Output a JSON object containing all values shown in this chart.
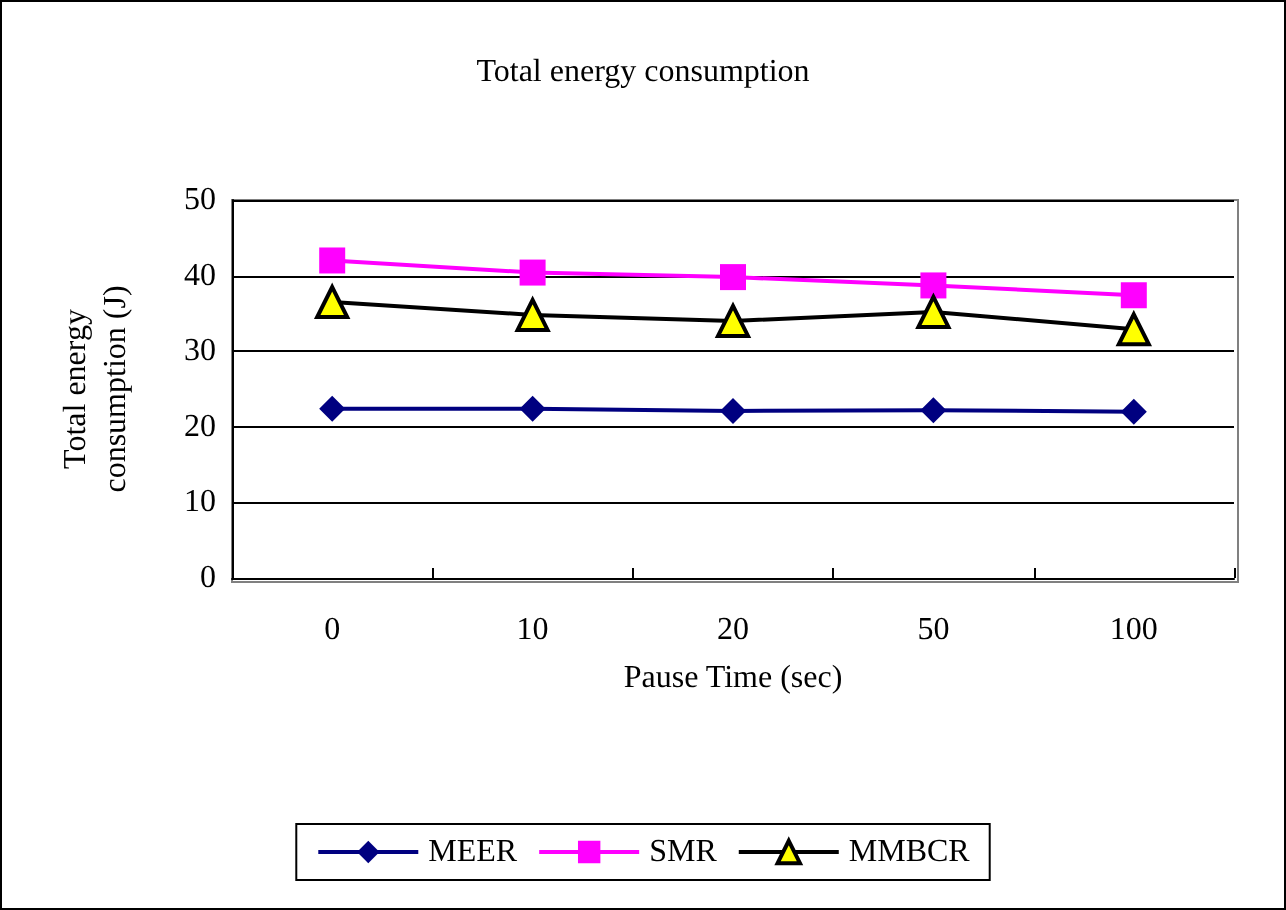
{
  "chart_data": {
    "type": "line",
    "title": "Total energy consumption",
    "xlabel": "Pause Time (sec)",
    "ylabel": "Total energy\nconsumption (J)",
    "categories": [
      "0",
      "10",
      "20",
      "50",
      "100"
    ],
    "series": [
      {
        "name": "MEER",
        "color": "#000080",
        "marker": "diamond",
        "values": [
          22.4,
          22.4,
          22.1,
          22.2,
          22.0
        ]
      },
      {
        "name": "SMR",
        "color": "#ff00ff",
        "marker": "square",
        "values": [
          42.0,
          40.4,
          39.8,
          38.7,
          37.4
        ]
      },
      {
        "name": "MMBCR",
        "color": "#000000",
        "marker": "triangle",
        "values": [
          36.5,
          34.8,
          34.0,
          35.2,
          32.9
        ]
      }
    ],
    "ylim": [
      0,
      50
    ],
    "yticks": [
      0,
      10,
      20,
      30,
      40,
      50
    ],
    "grid": "y",
    "legend": "bottom",
    "line_style": "solid"
  }
}
